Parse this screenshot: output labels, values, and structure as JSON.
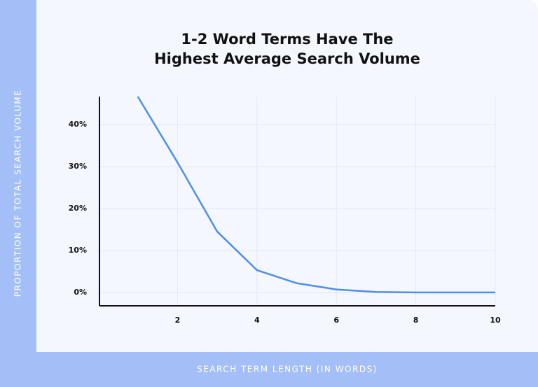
{
  "chart_data": {
    "type": "line",
    "title": "1-2 Word Terms Have The Highest Average Search Volume",
    "x_label": "SEARCH TERM LENGTH (IN WORDS)",
    "y_label": "PROPORTION OF TOTAL SEARCH VOLUME",
    "x": [
      1,
      2,
      3,
      4,
      5,
      6,
      7,
      8,
      9,
      10
    ],
    "series": [
      {
        "color": "#4f8ef0",
        "values": [
          46.7,
          31,
          14.5,
          5.3,
          2.2,
          0.7,
          0.1,
          0,
          0,
          0
        ]
      }
    ],
    "xlim": [
      0,
      10
    ],
    "xticks": [
      2,
      4,
      6,
      8,
      10
    ],
    "ylim": [
      -3.2,
      46.7
    ],
    "yticks": [
      {
        "value": 0,
        "label": "0%"
      },
      {
        "value": 10,
        "label": "10%"
      },
      {
        "value": 20,
        "label": "20%"
      },
      {
        "value": 30,
        "label": "30%"
      },
      {
        "value": 40,
        "label": "40%"
      }
    ],
    "grid": true
  }
}
